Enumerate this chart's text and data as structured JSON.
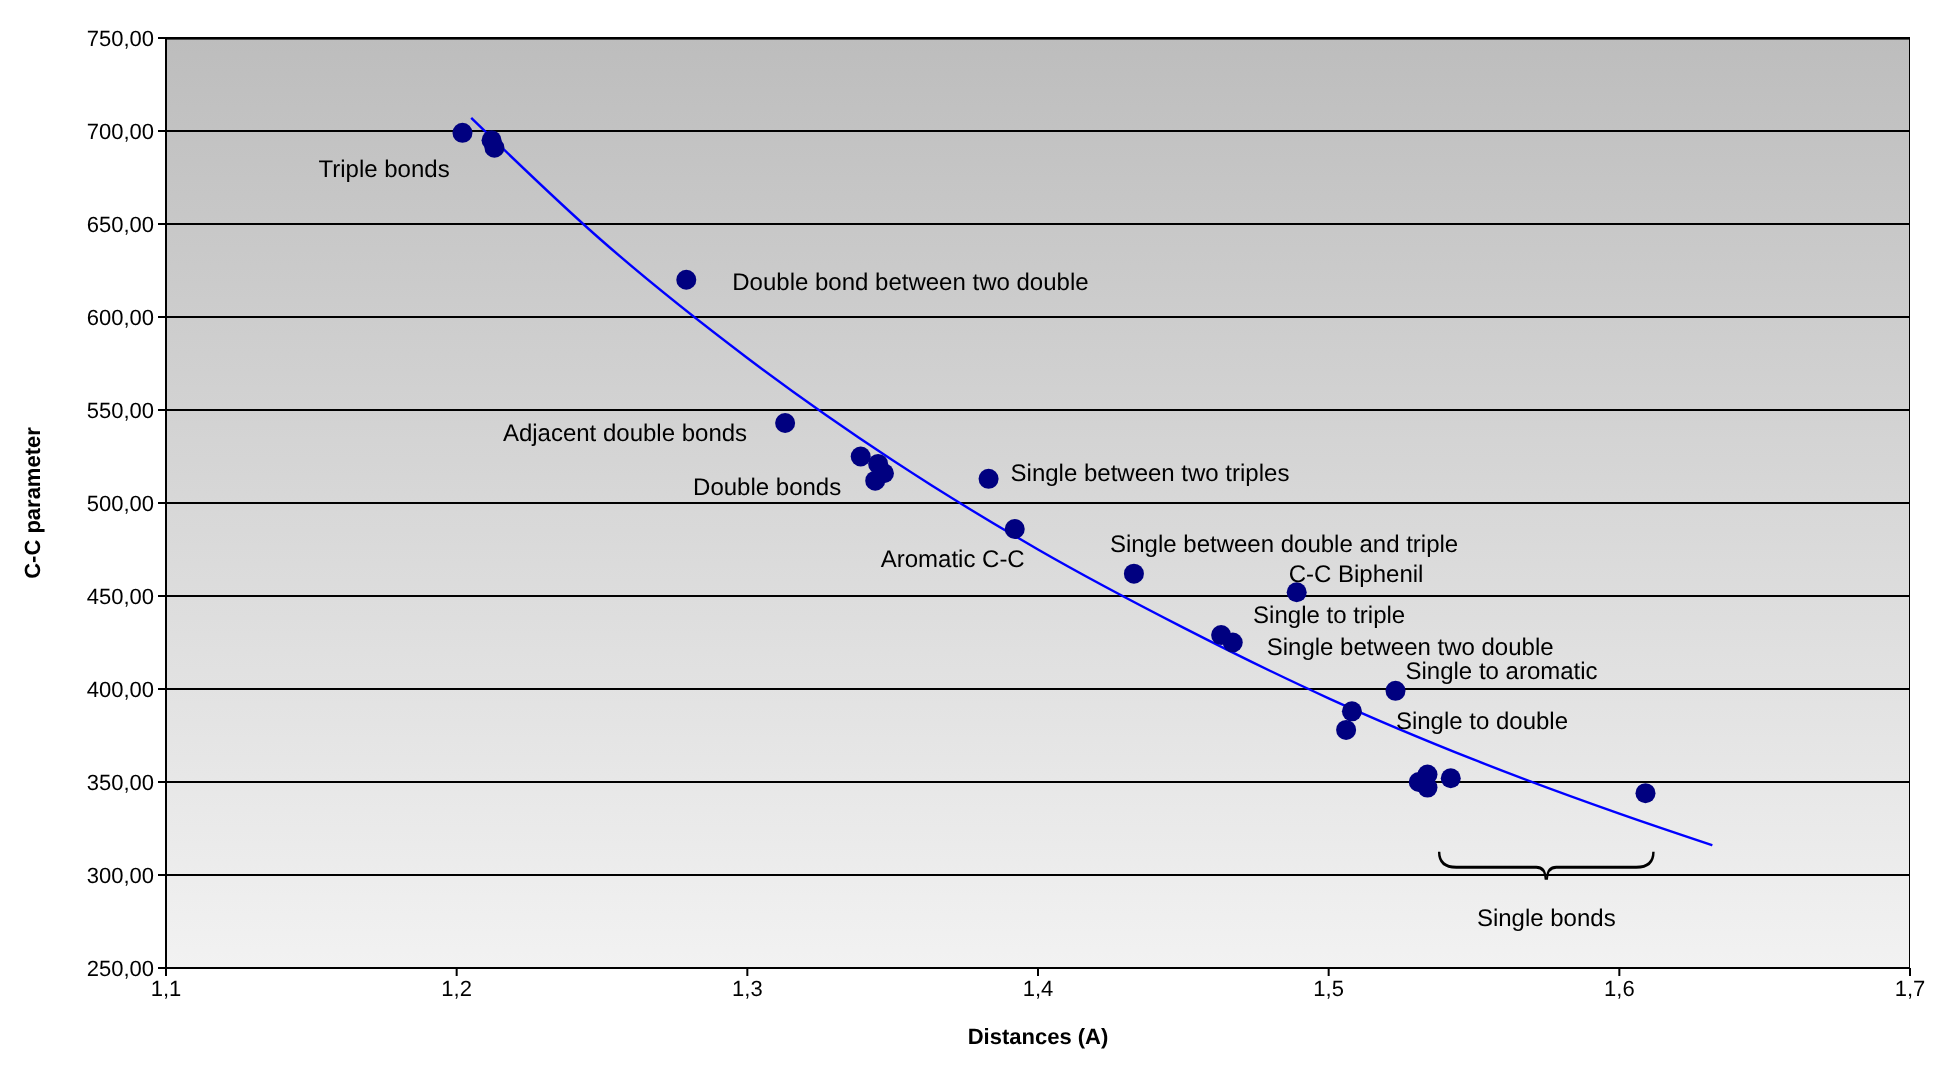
{
  "chart_data": {
    "type": "scatter",
    "xlabel": "Distances (A)",
    "ylabel": "C-C parameter",
    "xlim": [
      1.1,
      1.7
    ],
    "ylim": [
      250,
      750
    ],
    "xticks": [
      {
        "value": 1.1,
        "label": "1,1"
      },
      {
        "value": 1.2,
        "label": "1,2"
      },
      {
        "value": 1.3,
        "label": "1,3"
      },
      {
        "value": 1.4,
        "label": "1,4"
      },
      {
        "value": 1.5,
        "label": "1,5"
      },
      {
        "value": 1.6,
        "label": "1,6"
      },
      {
        "value": 1.7,
        "label": "1,7"
      }
    ],
    "yticks": [
      {
        "value": 250,
        "label": "250,00"
      },
      {
        "value": 300,
        "label": "300,00"
      },
      {
        "value": 350,
        "label": "350,00"
      },
      {
        "value": 400,
        "label": "400,00"
      },
      {
        "value": 450,
        "label": "450,00"
      },
      {
        "value": 500,
        "label": "500,00"
      },
      {
        "value": 550,
        "label": "550,00"
      },
      {
        "value": 600,
        "label": "600,00"
      },
      {
        "value": 650,
        "label": "650,00"
      },
      {
        "value": 700,
        "label": "700,00"
      },
      {
        "value": 750,
        "label": "750,00"
      }
    ],
    "grid": "y",
    "legend": false,
    "series": [
      {
        "color": "#000080",
        "marker": "circle",
        "x": [
          1.202,
          1.212,
          1.213,
          1.279,
          1.313,
          1.339,
          1.345,
          1.344,
          1.347,
          1.383,
          1.392,
          1.433,
          1.489,
          1.463,
          1.467,
          1.523,
          1.508,
          1.506,
          1.531,
          1.534,
          1.534,
          1.542,
          1.609
        ],
        "values": [
          699,
          695,
          691,
          620,
          543,
          525,
          521,
          512,
          516,
          513,
          486,
          462,
          452,
          429,
          425,
          399,
          388,
          378,
          350,
          354,
          347,
          352,
          344
        ]
      },
      {
        "type": "line",
        "color": "#0000ff",
        "marker": "none",
        "line_style": "solid",
        "x": [
          1.205,
          1.25,
          1.3,
          1.35,
          1.4,
          1.45,
          1.5,
          1.55,
          1.6,
          1.632
        ],
        "values": [
          707,
          641,
          578,
          523,
          475,
          433,
          395,
          362,
          333,
          316
        ]
      }
    ],
    "annotations": [
      {
        "text": "Triple bonds",
        "x": 1.202,
        "y": 699
      },
      {
        "text": "Double bond between two double",
        "x": 1.279,
        "y": 620
      },
      {
        "text": "Adjacent double bonds",
        "x": 1.313,
        "y": 543
      },
      {
        "text": "Double bonds",
        "x": 1.344,
        "y": 512
      },
      {
        "text": "Single between two triples",
        "x": 1.383,
        "y": 513
      },
      {
        "text": "Aromatic C-C",
        "x": 1.392,
        "y": 486
      },
      {
        "text": "Single between double and triple",
        "x": 1.433,
        "y": 462
      },
      {
        "text": "C-C Biphenil",
        "x": 1.489,
        "y": 452
      },
      {
        "text": "Single to triple",
        "x": 1.463,
        "y": 429
      },
      {
        "text": "Single between two double",
        "x": 1.467,
        "y": 425
      },
      {
        "text": "Single to aromatic",
        "x": 1.523,
        "y": 399
      },
      {
        "text": "Single to double",
        "x": 1.508,
        "y": 388
      },
      "Single bonds"
    ]
  }
}
